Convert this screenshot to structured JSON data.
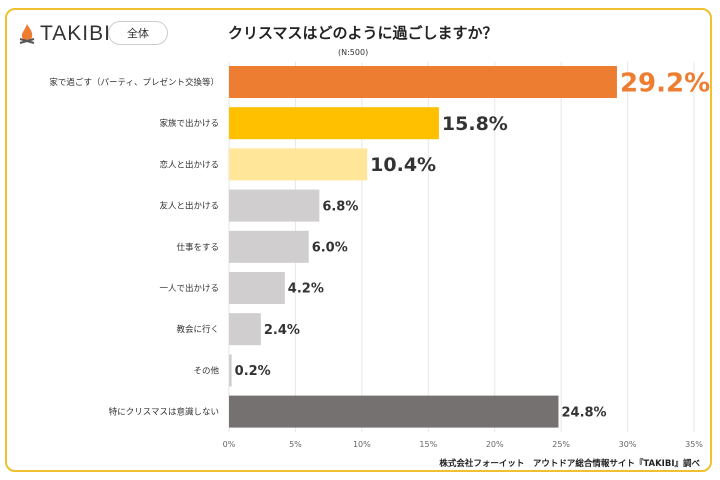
{
  "header": {
    "brand": "TAKIBI",
    "segment": "全体",
    "title": "クリスマスはどのように過ごしますか？",
    "sample": "(N:500)"
  },
  "source": "株式会社フォーイット　アウトドア総合情報サイト『TAKIBI』調べ",
  "chart_data": {
    "type": "bar",
    "orientation": "horizontal",
    "title": "クリスマスはどのように過ごしますか？",
    "categories": [
      "家で過ごす（パーティ、プレゼント交換等）",
      "家族で出かける",
      "恋人と出かける",
      "友人と出かける",
      "仕事をする",
      "一人で出かける",
      "教会に行く",
      "その他",
      "特にクリスマスは意識しない"
    ],
    "values": [
      29.2,
      15.8,
      10.4,
      6.8,
      6.0,
      4.2,
      2.4,
      0.2,
      24.8
    ],
    "labels": [
      "29.2%",
      "15.8%",
      "10.4%",
      "6.8%",
      "6.0%",
      "4.2%",
      "2.4%",
      "0.2%",
      "24.8%"
    ],
    "colors": [
      "#ed7d31",
      "#ffc000",
      "#ffe699",
      "#d0cece",
      "#d0cece",
      "#d0cece",
      "#d0cece",
      "#d0cece",
      "#767171"
    ],
    "label_colors": [
      "#ed7d31",
      "#333333",
      "#333333",
      "#333333",
      "#333333",
      "#333333",
      "#333333",
      "#333333",
      "#333333"
    ],
    "xlim": [
      0,
      35
    ],
    "xticks": [
      "0%",
      "5%",
      "10%",
      "15%",
      "20%",
      "25%",
      "30%",
      "35%"
    ],
    "grid": true
  }
}
